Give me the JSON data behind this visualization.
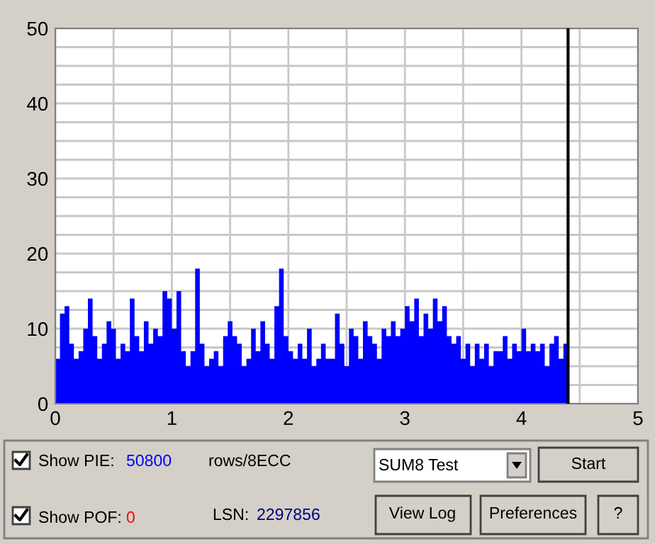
{
  "chart_data": {
    "type": "area",
    "color": "#0000ff",
    "x": [
      0,
      0.04,
      0.08,
      0.12,
      0.16,
      0.2,
      0.24,
      0.28,
      0.32,
      0.36,
      0.4,
      0.44,
      0.48,
      0.52,
      0.56,
      0.6,
      0.64,
      0.68,
      0.72,
      0.76,
      0.8,
      0.84,
      0.88,
      0.92,
      0.96,
      1,
      1.04,
      1.08,
      1.12,
      1.16,
      1.2,
      1.24,
      1.28,
      1.32,
      1.36,
      1.4,
      1.44,
      1.48,
      1.52,
      1.56,
      1.6,
      1.64,
      1.68,
      1.72,
      1.76,
      1.8,
      1.84,
      1.88,
      1.92,
      1.96,
      2,
      2.04,
      2.08,
      2.12,
      2.16,
      2.2,
      2.24,
      2.28,
      2.32,
      2.36,
      2.4,
      2.44,
      2.48,
      2.52,
      2.56,
      2.6,
      2.64,
      2.68,
      2.72,
      2.76,
      2.8,
      2.84,
      2.88,
      2.92,
      2.96,
      3,
      3.04,
      3.08,
      3.12,
      3.16,
      3.2,
      3.24,
      3.28,
      3.32,
      3.36,
      3.4,
      3.44,
      3.48,
      3.52,
      3.56,
      3.6,
      3.64,
      3.68,
      3.72,
      3.76,
      3.8,
      3.84,
      3.88,
      3.92,
      3.96,
      4,
      4.04,
      4.08,
      4.12,
      4.16,
      4.2,
      4.24,
      4.28,
      4.32,
      4.36,
      4.4
    ],
    "values": [
      6,
      12,
      13,
      8,
      6,
      7,
      10,
      14,
      9,
      6,
      8,
      11,
      10,
      6,
      8,
      7,
      14,
      9,
      7,
      11,
      8,
      10,
      9,
      15,
      14,
      10,
      15,
      7,
      5,
      7,
      18,
      8,
      5,
      6,
      7,
      5,
      9,
      11,
      9,
      8,
      5,
      6,
      10,
      7,
      11,
      8,
      6,
      13,
      18,
      9,
      7,
      6,
      8,
      6,
      10,
      5,
      6,
      8,
      6,
      6,
      12,
      8,
      5,
      10,
      9,
      6,
      11,
      9,
      8,
      6,
      10,
      9,
      11,
      9,
      10,
      13,
      11,
      14,
      9,
      12,
      10,
      14,
      11,
      13,
      9,
      8,
      9,
      6,
      8,
      5,
      8,
      6,
      8,
      5,
      7,
      7,
      9,
      6,
      8,
      7,
      10,
      7,
      8,
      7,
      8,
      5,
      8,
      9,
      6,
      8,
      7
    ],
    "xlim": [
      0,
      5
    ],
    "ylim": [
      0,
      50
    ],
    "xticks": [
      0,
      {
        "value": 0.5,
        "label": null
      },
      1,
      {
        "value": 1.5,
        "label": null
      },
      2,
      {
        "value": 2.5,
        "label": null
      },
      3,
      {
        "value": 3.5,
        "label": null
      },
      4,
      {
        "value": 4.5,
        "label": null
      },
      5
    ],
    "yticks": [
      0,
      {
        "value": 2.5,
        "label": null
      },
      {
        "value": 5,
        "label": null
      },
      {
        "value": 7.5,
        "label": null
      },
      10,
      {
        "value": 12.5,
        "label": null
      },
      {
        "value": 15,
        "label": null
      },
      {
        "value": 17.5,
        "label": null
      },
      20,
      {
        "value": 22.5,
        "label": null
      },
      {
        "value": 25,
        "label": null
      },
      {
        "value": 27.5,
        "label": null
      },
      30,
      {
        "value": 32.5,
        "label": null
      },
      {
        "value": 35,
        "label": null
      },
      {
        "value": 37.5,
        "label": null
      },
      40,
      {
        "value": 42.5,
        "label": null
      },
      {
        "value": 45,
        "label": null
      },
      {
        "value": 47.5,
        "label": null
      },
      50
    ],
    "grid": true,
    "ref_lines": [
      {
        "axis": "x",
        "value": 4.4,
        "color": "#000000"
      }
    ],
    "annotations": [
      "Show PIE:",
      "50800",
      "rows/8ECC",
      "SUM8 Test",
      "Start",
      "Show POF:",
      "0",
      "LSN:",
      "2297856",
      "View Log",
      "Preferences",
      "?"
    ]
  }
}
